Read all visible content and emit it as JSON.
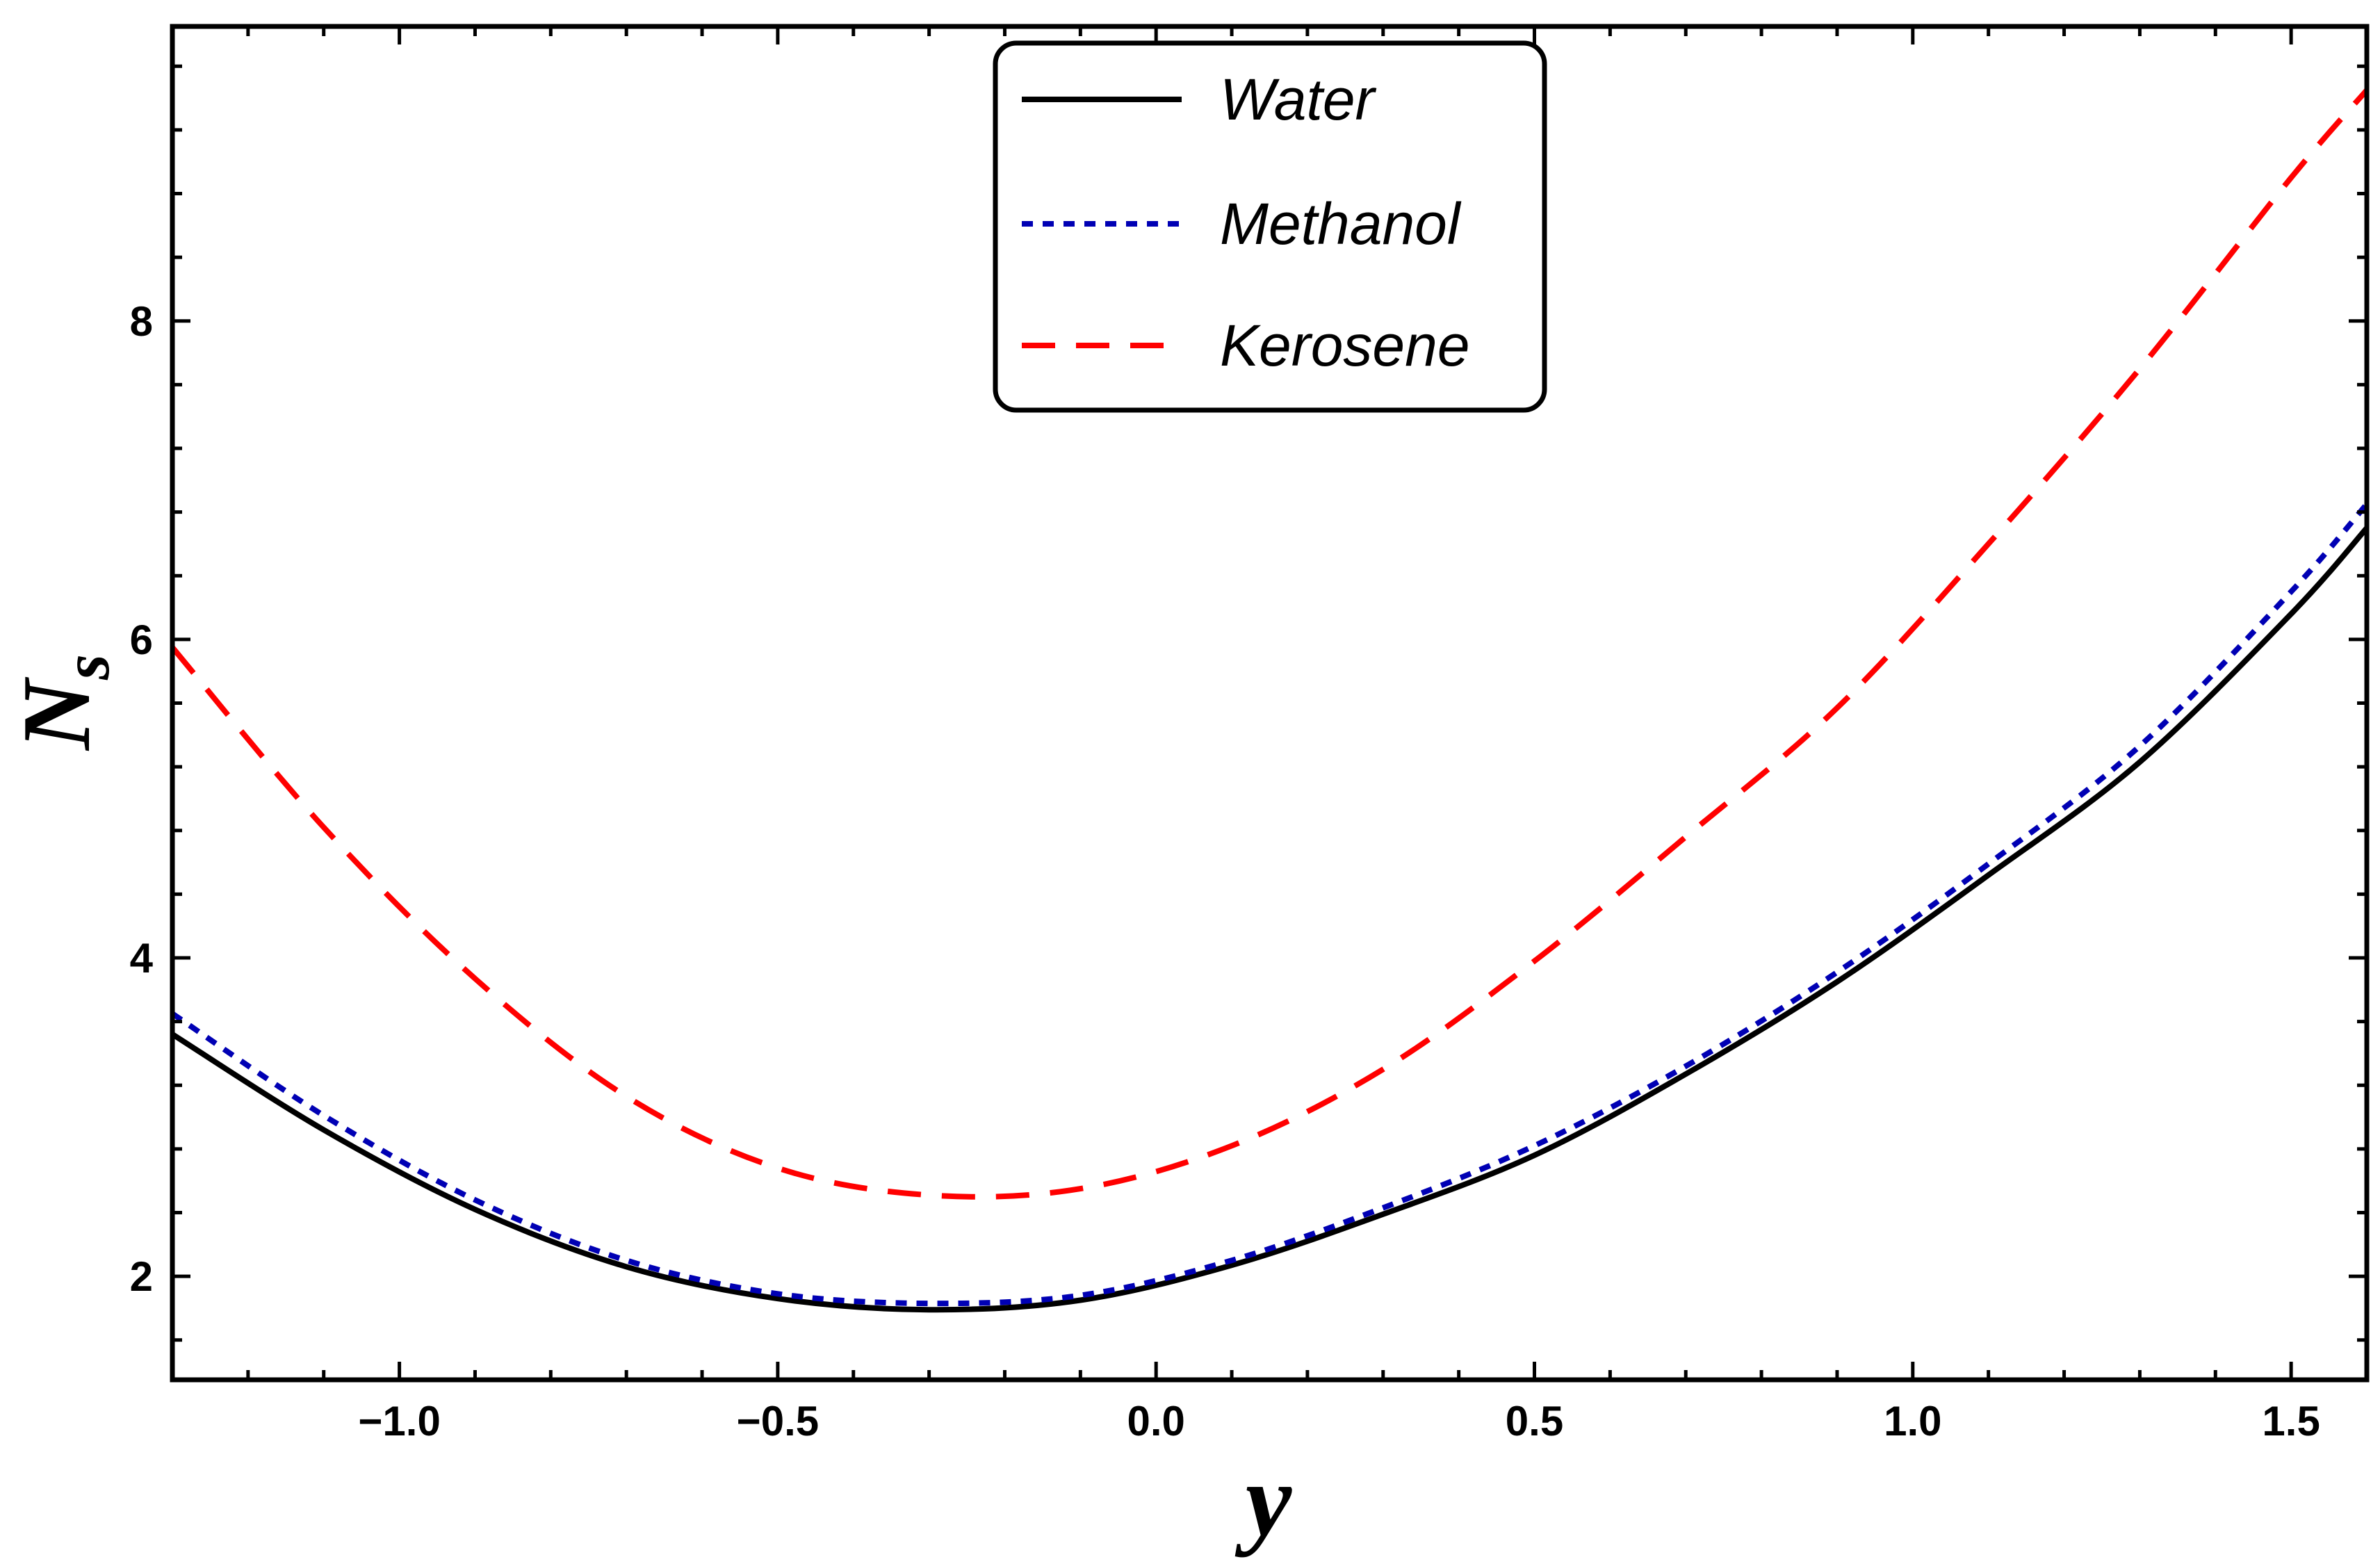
{
  "chart_data": {
    "type": "line",
    "title": "",
    "xlabel": "y",
    "ylabel_main": "N",
    "ylabel_sub": "s",
    "xlim": [
      -1.3,
      1.6
    ],
    "ylim": [
      1.35,
      9.85
    ],
    "xticks": [
      -1.0,
      -0.5,
      0.0,
      0.5,
      1.0,
      1.5
    ],
    "xtick_labels": [
      "−1.0",
      "−0.5",
      "0.0",
      "0.5",
      "1.0",
      "1.5"
    ],
    "yticks": [
      2,
      4,
      6,
      8
    ],
    "ytick_labels": [
      "2",
      "4",
      "6",
      "8"
    ],
    "legend_position": "top-center",
    "series": [
      {
        "name": "Water",
        "color": "#000000",
        "dash": "solid",
        "x": [
          -1.3,
          -1.1,
          -0.9,
          -0.7,
          -0.5,
          -0.3,
          -0.1,
          0.1,
          0.3,
          0.5,
          0.7,
          0.9,
          1.1,
          1.3,
          1.5,
          1.6
        ],
        "values": [
          3.52,
          2.92,
          2.42,
          2.06,
          1.86,
          1.79,
          1.85,
          2.07,
          2.39,
          2.76,
          3.27,
          3.85,
          4.52,
          5.23,
          6.16,
          6.7
        ]
      },
      {
        "name": "Methanol",
        "color": "#0000b4",
        "dash": "dotted",
        "x": [
          -1.3,
          -1.1,
          -0.9,
          -0.7,
          -0.5,
          -0.3,
          -0.1,
          0.1,
          0.3,
          0.5,
          0.7,
          0.9,
          1.1,
          1.3,
          1.5,
          1.6
        ],
        "values": [
          3.65,
          3.01,
          2.48,
          2.1,
          1.89,
          1.83,
          1.88,
          2.1,
          2.43,
          2.82,
          3.32,
          3.91,
          4.59,
          5.33,
          6.3,
          6.85
        ]
      },
      {
        "name": "Kerosene",
        "color": "#ff0000",
        "dash": "dashed",
        "x": [
          -1.3,
          -1.1,
          -0.9,
          -0.7,
          -0.5,
          -0.3,
          -0.1,
          0.1,
          0.3,
          0.5,
          0.7,
          0.9,
          1.1,
          1.3,
          1.5,
          1.6
        ],
        "values": [
          5.95,
          4.82,
          3.87,
          3.13,
          2.68,
          2.51,
          2.55,
          2.82,
          3.3,
          3.98,
          4.76,
          5.57,
          6.6,
          7.7,
          8.9,
          9.45
        ]
      }
    ]
  }
}
